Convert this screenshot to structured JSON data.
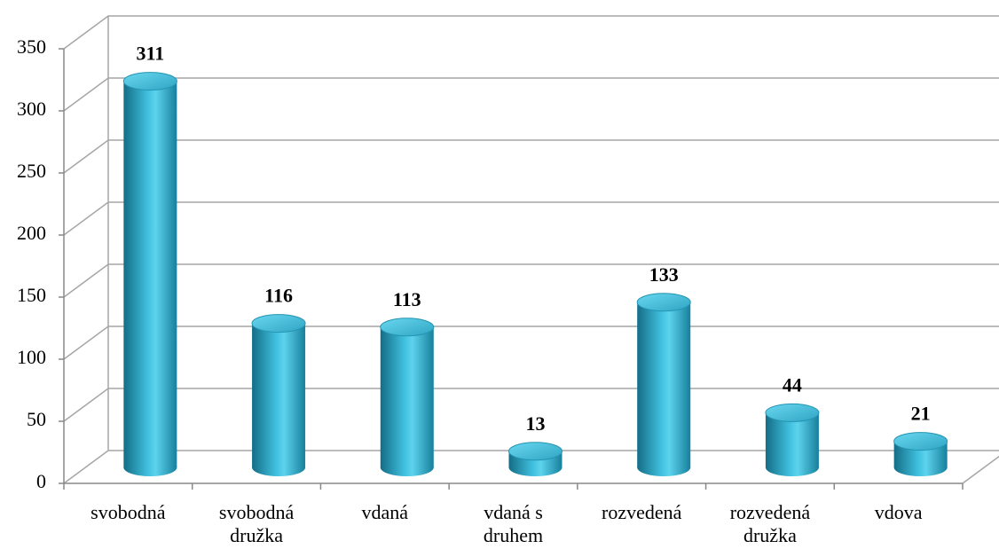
{
  "chart_data": {
    "type": "bar3d",
    "categories": [
      "svobodná",
      "svobodná družka",
      "vdaná",
      "vdaná s druhem",
      "rozvedená",
      "rozvedená družka",
      "vdova"
    ],
    "values": [
      311,
      116,
      113,
      13,
      133,
      44,
      21
    ],
    "color": "#2fa6c4",
    "ylim": [
      0,
      350
    ],
    "yticks": [
      0,
      50,
      100,
      150,
      200,
      250,
      300,
      350
    ],
    "grid": true
  }
}
